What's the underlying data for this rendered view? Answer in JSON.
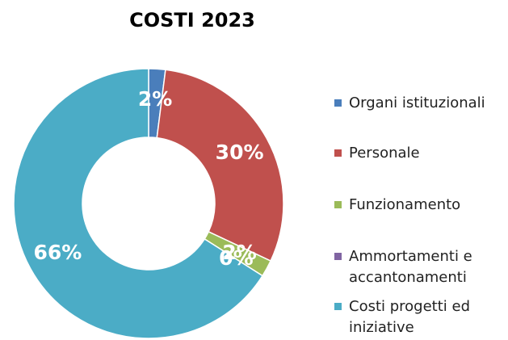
{
  "chart_data": {
    "type": "donut",
    "title": "COSTI 2023",
    "categories": [
      "Organi istituzionali",
      "Personale",
      "Funzionamento",
      "Ammortamenti e accantonamenti",
      "Costi progetti ed iniziative"
    ],
    "values": [
      2,
      30,
      2,
      0,
      66
    ],
    "value_labels": [
      "2%",
      "30%",
      "2%",
      "0%",
      "66%"
    ],
    "colors": [
      "#4a7ebb",
      "#c0504d",
      "#9bbb59",
      "#8064a2",
      "#4bacc6"
    ],
    "legend": "right"
  }
}
